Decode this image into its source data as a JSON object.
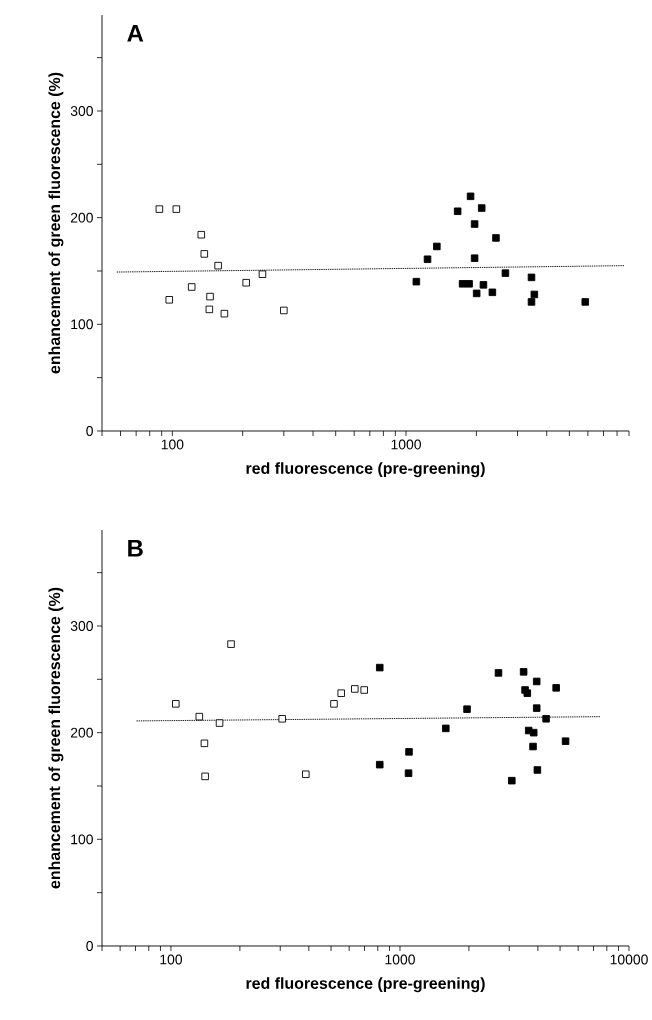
{
  "chart_data": [
    {
      "type": "scatter",
      "title": "A",
      "xlabel": "red fluorescence (pre-greening)",
      "ylabel": "enhancement of green fluorescence (%)",
      "log": "x",
      "xlim": [
        50,
        9000
      ],
      "ylim": [
        0,
        390
      ],
      "marker": "square",
      "xticks": [
        {
          "value": 50,
          "label": null
        },
        {
          "value": 60,
          "label": null
        },
        {
          "value": 70,
          "label": null
        },
        {
          "value": 80,
          "label": null
        },
        {
          "value": 90,
          "label": null
        },
        100,
        {
          "value": 200,
          "label": null
        },
        {
          "value": 300,
          "label": null
        },
        {
          "value": 400,
          "label": null
        },
        {
          "value": 500,
          "label": null
        },
        {
          "value": 600,
          "label": null
        },
        {
          "value": 700,
          "label": null
        },
        {
          "value": 800,
          "label": null
        },
        {
          "value": 900,
          "label": null
        },
        1000,
        {
          "value": 2000,
          "label": null
        },
        {
          "value": 3000,
          "label": null
        },
        {
          "value": 4000,
          "label": null
        },
        {
          "value": 5000,
          "label": null
        },
        {
          "value": 6000,
          "label": null
        },
        {
          "value": 7000,
          "label": null
        },
        {
          "value": 8000,
          "label": null
        },
        {
          "value": 9000,
          "label": null
        }
      ],
      "yticks": [
        0,
        {
          "value": 50,
          "label": null
        },
        100,
        {
          "value": 150,
          "label": null
        },
        200,
        {
          "value": 250,
          "label": null
        },
        300,
        {
          "value": 350,
          "label": null
        }
      ],
      "series": [
        {
          "color": "#ffffff",
          "x": [
            88,
            104,
            133,
            137,
            157,
            121,
            97,
            145,
            144,
            167,
            207,
            243,
            300
          ],
          "values": [
            208,
            208,
            184,
            166,
            155,
            135,
            123,
            126,
            114,
            110,
            139,
            147,
            113
          ]
        },
        {
          "color": "#000000",
          "x": [
            1107,
            1236,
            1355,
            1663,
            1889,
            2108,
            1966,
            1966,
            2426,
            1746,
            1862,
            2006,
            2144,
            2342,
            2663,
            3443,
            3541,
            3443,
            5848
          ],
          "values": [
            140,
            161,
            173,
            206,
            220,
            209,
            194,
            162,
            181,
            138,
            138,
            129,
            137,
            130,
            148,
            144,
            128,
            121,
            121
          ]
        },
        {
          "type": "line",
          "color": "#000000",
          "line_style": "dotted",
          "marker": "none",
          "x": [
            58,
            8600
          ],
          "values": [
            149,
            155
          ]
        }
      ]
    },
    {
      "type": "scatter",
      "title": "B",
      "xlabel": "red fluorescence (pre-greening)",
      "ylabel": "enhancement of green fluorescence (%)",
      "log": "x",
      "xlim": [
        50,
        10000
      ],
      "ylim": [
        0,
        390
      ],
      "marker": "square",
      "xticks": [
        {
          "value": 50,
          "label": null
        },
        {
          "value": 60,
          "label": null
        },
        {
          "value": 70,
          "label": null
        },
        {
          "value": 80,
          "label": null
        },
        {
          "value": 90,
          "label": null
        },
        100,
        {
          "value": 200,
          "label": null
        },
        {
          "value": 300,
          "label": null
        },
        {
          "value": 400,
          "label": null
        },
        {
          "value": 500,
          "label": null
        },
        {
          "value": 600,
          "label": null
        },
        {
          "value": 700,
          "label": null
        },
        {
          "value": 800,
          "label": null
        },
        {
          "value": 900,
          "label": null
        },
        1000,
        {
          "value": 2000,
          "label": null
        },
        {
          "value": 3000,
          "label": null
        },
        {
          "value": 4000,
          "label": null
        },
        {
          "value": 5000,
          "label": null
        },
        {
          "value": 6000,
          "label": null
        },
        {
          "value": 7000,
          "label": null
        },
        {
          "value": 8000,
          "label": null
        },
        {
          "value": 9000,
          "label": null
        },
        10000
      ],
      "yticks": [
        0,
        {
          "value": 50,
          "label": null
        },
        100,
        {
          "value": 150,
          "label": null
        },
        200,
        {
          "value": 250,
          "label": null
        },
        300,
        {
          "value": 350,
          "label": null
        }
      ],
      "series": [
        {
          "color": "#ffffff",
          "x": [
            105,
            133,
            163,
            140,
            141,
            183,
            306,
            388,
            515,
            554,
            635,
            698
          ],
          "values": [
            227,
            215,
            209,
            190,
            159,
            283,
            213,
            161,
            227,
            237,
            241,
            240
          ]
        },
        {
          "color": "#000000",
          "x": [
            816,
            816,
            1095,
            1090,
            1585,
            1963,
            2692,
            3078,
            3467,
            3517,
            3597,
            3954,
            3954,
            4345,
            4808,
            3648,
            3837,
            3811,
            3981,
            5284
          ],
          "values": [
            261,
            170,
            182,
            162,
            204,
            222,
            256,
            155,
            257,
            240,
            237,
            248,
            223,
            213,
            242,
            202,
            200,
            187,
            165,
            192
          ]
        },
        {
          "type": "line",
          "color": "#000000",
          "line_style": "dotted",
          "marker": "none",
          "x": [
            71,
            7540
          ],
          "values": [
            211,
            215
          ]
        }
      ]
    }
  ]
}
